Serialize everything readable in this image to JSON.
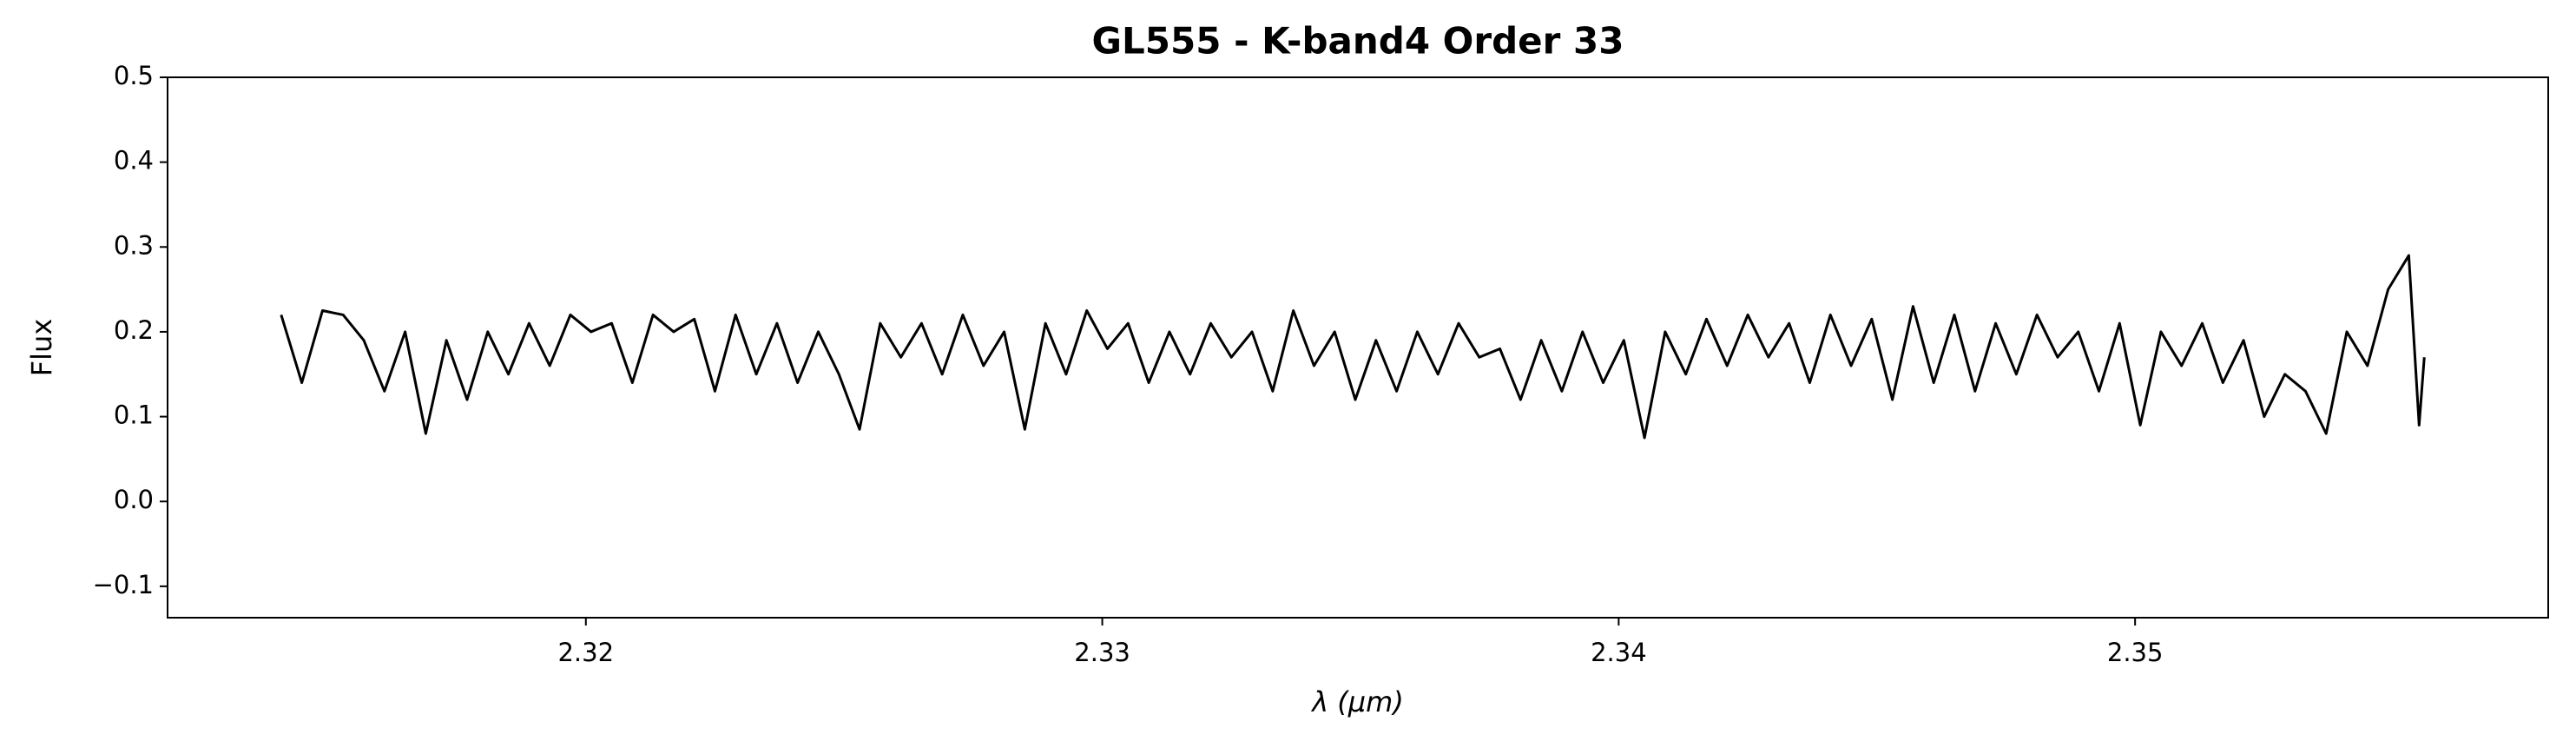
{
  "chart_data": {
    "type": "line",
    "title": "GL555 - K-band4 Order 33",
    "x_label": "λ (μm)",
    "y_label": "Flux",
    "x": [
      2.3141,
      2.3145,
      2.3149,
      2.3153,
      2.3157,
      2.3161,
      2.3165,
      2.3169,
      2.3173,
      2.3177,
      2.3181,
      2.3185,
      2.3189,
      2.3193,
      2.3197,
      2.3201,
      2.3205,
      2.3209,
      2.3213,
      2.3217,
      2.3221,
      2.3225,
      2.3229,
      2.3233,
      2.3237,
      2.3241,
      2.3245,
      2.3249,
      2.3253,
      2.3257,
      2.3261,
      2.3265,
      2.3269,
      2.3273,
      2.3277,
      2.3281,
      2.3285,
      2.3289,
      2.3293,
      2.3297,
      2.3301,
      2.3305,
      2.3309,
      2.3313,
      2.3317,
      2.3321,
      2.3325,
      2.3329,
      2.3333,
      2.3337,
      2.3341,
      2.3345,
      2.3349,
      2.3353,
      2.3357,
      2.3361,
      2.3365,
      2.3369,
      2.3373,
      2.3377,
      2.3381,
      2.3385,
      2.3389,
      2.3393,
      2.3397,
      2.3401,
      2.3405,
      2.3409,
      2.3413,
      2.3417,
      2.3421,
      2.3425,
      2.3429,
      2.3433,
      2.3437,
      2.3441,
      2.3445,
      2.3449,
      2.3453,
      2.3457,
      2.3461,
      2.3465,
      2.3469,
      2.3473,
      2.3477,
      2.3481,
      2.3485,
      2.3489,
      2.3493,
      2.3497,
      2.3501,
      2.3505,
      2.3509,
      2.3513,
      2.3517,
      2.3521,
      2.3525,
      2.3529,
      2.3533,
      2.3537,
      2.3541,
      2.3545,
      2.3549,
      2.3553,
      2.3555,
      2.3556
    ],
    "series": [
      {
        "color": "#000000",
        "values": [
          0.22,
          0.14,
          0.225,
          0.22,
          0.19,
          0.13,
          0.2,
          0.08,
          0.19,
          0.12,
          0.2,
          0.15,
          0.21,
          0.16,
          0.22,
          0.2,
          0.21,
          0.14,
          0.22,
          0.2,
          0.215,
          0.13,
          0.22,
          0.15,
          0.21,
          0.14,
          0.2,
          0.15,
          0.085,
          0.21,
          0.17,
          0.21,
          0.15,
          0.22,
          0.16,
          0.2,
          0.085,
          0.21,
          0.15,
          0.225,
          0.18,
          0.21,
          0.14,
          0.2,
          0.15,
          0.21,
          0.17,
          0.2,
          0.13,
          0.225,
          0.16,
          0.2,
          0.12,
          0.19,
          0.13,
          0.2,
          0.15,
          0.21,
          0.17,
          0.18,
          0.12,
          0.19,
          0.13,
          0.2,
          0.14,
          0.19,
          0.075,
          0.2,
          0.15,
          0.215,
          0.16,
          0.22,
          0.17,
          0.21,
          0.14,
          0.22,
          0.16,
          0.215,
          0.12,
          0.23,
          0.14,
          0.22,
          0.13,
          0.21,
          0.15,
          0.22,
          0.17,
          0.2,
          0.13,
          0.21,
          0.09,
          0.2,
          0.16,
          0.21,
          0.14,
          0.19,
          0.1,
          0.15,
          0.13,
          0.08,
          0.2,
          0.16,
          0.25,
          0.29,
          0.09,
          0.17
        ]
      }
    ],
    "xlim": [
      2.3119,
      2.358
    ],
    "xticks": [
      2.32,
      2.33,
      2.34,
      2.35
    ],
    "ylim": [
      -0.137,
      0.5
    ],
    "yticks": [
      {
        "value": -0.1,
        "label": "−0.1"
      },
      {
        "value": 0,
        "label": "0.0"
      },
      0.1,
      0.2,
      0.3,
      0.4,
      0.5
    ],
    "grid": false
  }
}
